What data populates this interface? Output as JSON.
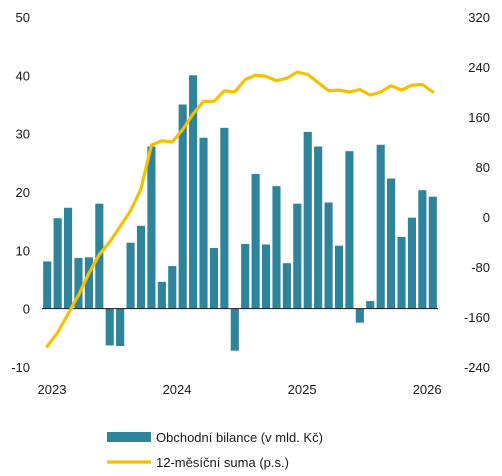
{
  "chart_data": {
    "type": "bar",
    "title": "",
    "colors": {
      "bars": "#2e849a",
      "line": "#f5c000",
      "axis": "#1a1a1a"
    },
    "y_left": {
      "ylim": [
        -10,
        50
      ],
      "ticks": [
        -10,
        0,
        10,
        20,
        30,
        40,
        50
      ]
    },
    "y_right": {
      "ylim": [
        -240,
        320
      ],
      "ticks": [
        -240,
        -160,
        -80,
        0,
        80,
        160,
        240,
        320
      ]
    },
    "x_ticks": [
      "2023",
      "2024",
      "2025",
      "2026"
    ],
    "x_tick_months": [
      "2023-01",
      "2024-01",
      "2025-01",
      "2026-01"
    ],
    "months": [
      "2023-01",
      "2023-02",
      "2023-03",
      "2023-04",
      "2023-05",
      "2023-06",
      "2023-07",
      "2023-08",
      "2023-09",
      "2023-10",
      "2023-11",
      "2023-12",
      "2024-01",
      "2024-02",
      "2024-03",
      "2024-04",
      "2024-05",
      "2024-06",
      "2024-07",
      "2024-08",
      "2024-09",
      "2024-10",
      "2024-11",
      "2024-12",
      "2025-01",
      "2025-02",
      "2025-03",
      "2025-04",
      "2025-05",
      "2025-06",
      "2025-07",
      "2025-08",
      "2025-09",
      "2025-10",
      "2025-11",
      "2025-12",
      "2026-01",
      "2026-02"
    ],
    "series": [
      {
        "name": "Obchodní bilance (v mld. Kč)",
        "type": "bar",
        "axis": "left",
        "values": [
          8.1,
          15.5,
          17.3,
          8.7,
          8.8,
          18.0,
          -6.3,
          -6.4,
          11.3,
          14.2,
          27.8,
          4.6,
          7.3,
          35.0,
          40.0,
          29.3,
          10.4,
          31.0,
          -7.2,
          11.1,
          23.1,
          11.0,
          21.0,
          7.8,
          18.0,
          30.3,
          27.8,
          18.2,
          10.8,
          27.0,
          -2.4,
          1.3,
          28.1,
          22.3,
          12.3,
          15.6,
          20.3,
          19.2
        ]
      },
      {
        "name": "12-měsíční suma (p.s.)",
        "type": "line",
        "axis": "right",
        "values": [
          -207,
          -185,
          -155,
          -125,
          -90,
          -60,
          -40,
          -15,
          10,
          45,
          115,
          122,
          120,
          140,
          165,
          185,
          185,
          202,
          200,
          220,
          227,
          225,
          218,
          222,
          232,
          228,
          215,
          202,
          203,
          200,
          204,
          195,
          200,
          210,
          203,
          211,
          212,
          200
        ]
      }
    ]
  }
}
